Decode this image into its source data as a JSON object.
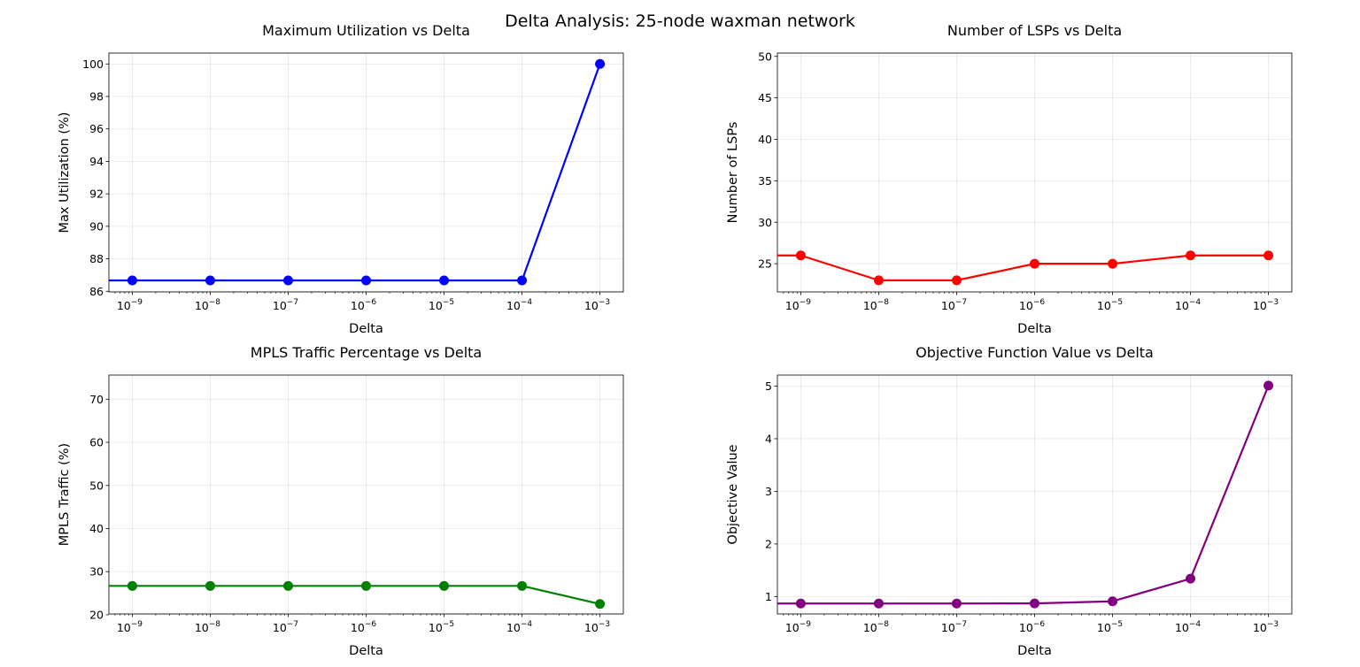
{
  "figure": {
    "title": "Delta Analysis: 25-node waxman network"
  },
  "chart_data": [
    {
      "type": "line",
      "title": "Maximum Utilization vs Delta",
      "xlabel": "Delta",
      "ylabel": "Max Utilization (%)",
      "xscale": "log",
      "x": [
        1e-09,
        1e-08,
        1e-07,
        1e-06,
        1e-05,
        0.0001,
        0.001
      ],
      "x_ticks": [
        {
          "base": "10",
          "exp": "−9"
        },
        {
          "base": "10",
          "exp": "−8"
        },
        {
          "base": "10",
          "exp": "−7"
        },
        {
          "base": "10",
          "exp": "−6"
        },
        {
          "base": "10",
          "exp": "−5"
        },
        {
          "base": "10",
          "exp": "−4"
        },
        {
          "base": "10",
          "exp": "−3"
        }
      ],
      "values": [
        86.67,
        86.67,
        86.67,
        86.67,
        86.67,
        86.67,
        100.0
      ],
      "ylim": [
        85.96,
        100.67
      ],
      "y_ticks": [
        "86",
        "88",
        "90",
        "92",
        "94",
        "96",
        "98",
        "100"
      ],
      "color": "#0000ff",
      "grid": true
    },
    {
      "type": "line",
      "title": "Number of LSPs vs Delta",
      "xlabel": "Delta",
      "ylabel": "Number of LSPs",
      "xscale": "log",
      "x": [
        1e-09,
        1e-08,
        1e-07,
        1e-06,
        1e-05,
        0.0001,
        0.001
      ],
      "x_ticks": [
        {
          "base": "10",
          "exp": "−9"
        },
        {
          "base": "10",
          "exp": "−8"
        },
        {
          "base": "10",
          "exp": "−7"
        },
        {
          "base": "10",
          "exp": "−6"
        },
        {
          "base": "10",
          "exp": "−5"
        },
        {
          "base": "10",
          "exp": "−4"
        },
        {
          "base": "10",
          "exp": "−3"
        }
      ],
      "values": [
        26,
        23,
        23,
        25,
        25,
        26,
        26
      ],
      "ylim": [
        21.6,
        50.4
      ],
      "y_ticks": [
        "25",
        "30",
        "35",
        "40",
        "45",
        "50"
      ],
      "color": "#ff0000",
      "grid": true
    },
    {
      "type": "line",
      "title": "MPLS Traffic Percentage vs Delta",
      "xlabel": "Delta",
      "ylabel": "MPLS Traffic (%)",
      "xscale": "log",
      "x": [
        1e-09,
        1e-08,
        1e-07,
        1e-06,
        1e-05,
        0.0001,
        0.001
      ],
      "x_ticks": [
        {
          "base": "10",
          "exp": "−9"
        },
        {
          "base": "10",
          "exp": "−8"
        },
        {
          "base": "10",
          "exp": "−7"
        },
        {
          "base": "10",
          "exp": "−6"
        },
        {
          "base": "10",
          "exp": "−5"
        },
        {
          "base": "10",
          "exp": "−4"
        },
        {
          "base": "10",
          "exp": "−3"
        }
      ],
      "values": [
        26.7,
        26.7,
        26.7,
        26.7,
        26.7,
        26.7,
        22.5
      ],
      "ylim": [
        20.2,
        75.6
      ],
      "y_ticks": [
        "20",
        "30",
        "40",
        "50",
        "60",
        "70"
      ],
      "color": "#008000",
      "grid": true
    },
    {
      "type": "line",
      "title": "Objective Function Value vs Delta",
      "xlabel": "Delta",
      "ylabel": "Objective Value",
      "xscale": "log",
      "x": [
        1e-09,
        1e-08,
        1e-07,
        1e-06,
        1e-05,
        0.0001,
        0.001
      ],
      "x_ticks": [
        {
          "base": "10",
          "exp": "−9"
        },
        {
          "base": "10",
          "exp": "−8"
        },
        {
          "base": "10",
          "exp": "−7"
        },
        {
          "base": "10",
          "exp": "−6"
        },
        {
          "base": "10",
          "exp": "−5"
        },
        {
          "base": "10",
          "exp": "−4"
        },
        {
          "base": "10",
          "exp": "−3"
        }
      ],
      "values": [
        0.867,
        0.867,
        0.867,
        0.87,
        0.91,
        1.34,
        5.01
      ],
      "ylim": [
        0.67,
        5.21
      ],
      "y_ticks": [
        "1",
        "2",
        "3",
        "4",
        "5"
      ],
      "color": "#800080",
      "grid": true
    }
  ]
}
